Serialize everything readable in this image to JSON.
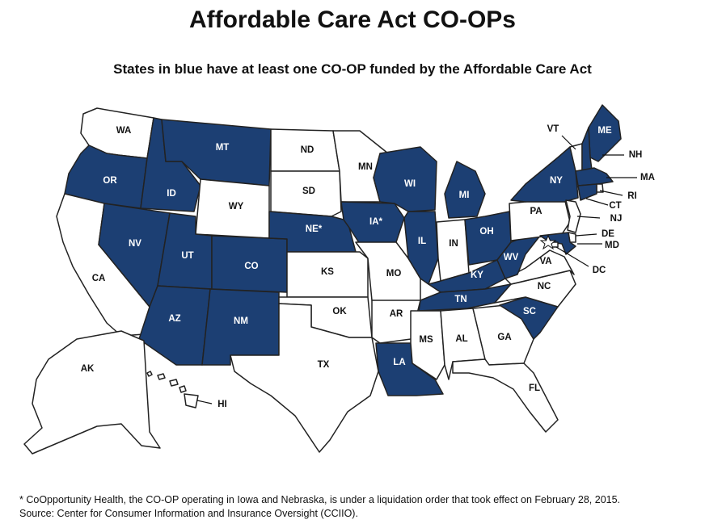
{
  "title": "Affordable Care Act CO-OPs",
  "subtitle": "States in blue have at least one CO-OP funded by the Affordable Care Act",
  "colors": {
    "coop": "#1c3f73",
    "no_coop": "#ffffff",
    "border": "#222222"
  },
  "legend_note": "States in blue",
  "states": [
    {
      "code": "WA",
      "label": "WA",
      "coop": false
    },
    {
      "code": "OR",
      "label": "OR",
      "coop": true
    },
    {
      "code": "CA",
      "label": "CA",
      "coop": false
    },
    {
      "code": "ID",
      "label": "ID",
      "coop": true
    },
    {
      "code": "NV",
      "label": "NV",
      "coop": true
    },
    {
      "code": "MT",
      "label": "MT",
      "coop": true
    },
    {
      "code": "WY",
      "label": "WY",
      "coop": false
    },
    {
      "code": "UT",
      "label": "UT",
      "coop": true
    },
    {
      "code": "AZ",
      "label": "AZ",
      "coop": true
    },
    {
      "code": "CO",
      "label": "CO",
      "coop": true
    },
    {
      "code": "NM",
      "label": "NM",
      "coop": true
    },
    {
      "code": "ND",
      "label": "ND",
      "coop": false
    },
    {
      "code": "SD",
      "label": "SD",
      "coop": false
    },
    {
      "code": "NE",
      "label": "NE*",
      "coop": true
    },
    {
      "code": "KS",
      "label": "KS",
      "coop": false
    },
    {
      "code": "OK",
      "label": "OK",
      "coop": false
    },
    {
      "code": "TX",
      "label": "TX",
      "coop": false
    },
    {
      "code": "MN",
      "label": "MN",
      "coop": false
    },
    {
      "code": "IA",
      "label": "IA*",
      "coop": true
    },
    {
      "code": "MO",
      "label": "MO",
      "coop": false
    },
    {
      "code": "AR",
      "label": "AR",
      "coop": false
    },
    {
      "code": "LA",
      "label": "LA",
      "coop": true
    },
    {
      "code": "WI",
      "label": "WI",
      "coop": true
    },
    {
      "code": "IL",
      "label": "IL",
      "coop": true
    },
    {
      "code": "MI",
      "label": "MI",
      "coop": true
    },
    {
      "code": "IN",
      "label": "IN",
      "coop": false
    },
    {
      "code": "OH",
      "label": "OH",
      "coop": true
    },
    {
      "code": "KY",
      "label": "KY",
      "coop": true
    },
    {
      "code": "TN",
      "label": "TN",
      "coop": true
    },
    {
      "code": "MS",
      "label": "MS",
      "coop": false
    },
    {
      "code": "AL",
      "label": "AL",
      "coop": false
    },
    {
      "code": "GA",
      "label": "GA",
      "coop": false
    },
    {
      "code": "FL",
      "label": "FL",
      "coop": false
    },
    {
      "code": "SC",
      "label": "SC",
      "coop": true
    },
    {
      "code": "NC",
      "label": "NC",
      "coop": false
    },
    {
      "code": "VA",
      "label": "VA",
      "coop": false
    },
    {
      "code": "WV",
      "label": "WV",
      "coop": true
    },
    {
      "code": "PA",
      "label": "PA",
      "coop": false
    },
    {
      "code": "NY",
      "label": "NY",
      "coop": true
    },
    {
      "code": "ME",
      "label": "ME",
      "coop": true
    },
    {
      "code": "VT",
      "label": "VT",
      "coop": false
    },
    {
      "code": "NH",
      "label": "NH",
      "coop": true
    },
    {
      "code": "MA",
      "label": "MA",
      "coop": true
    },
    {
      "code": "RI",
      "label": "RI",
      "coop": false
    },
    {
      "code": "CT",
      "label": "CT",
      "coop": true
    },
    {
      "code": "NJ",
      "label": "NJ",
      "coop": false
    },
    {
      "code": "DE",
      "label": "DE",
      "coop": false
    },
    {
      "code": "MD",
      "label": "MD",
      "coop": true
    },
    {
      "code": "DC",
      "label": "DC",
      "coop": false
    },
    {
      "code": "AK",
      "label": "AK",
      "coop": false
    },
    {
      "code": "HI",
      "label": "HI",
      "coop": false
    }
  ],
  "footnote": "* CoOpportunity Health, the CO-OP operating in Iowa and Nebraska, is under a liquidation order that took effect on February 28, 2015.",
  "source": "Source: Center for Consumer Information and Insurance Oversight (CCIIO)."
}
